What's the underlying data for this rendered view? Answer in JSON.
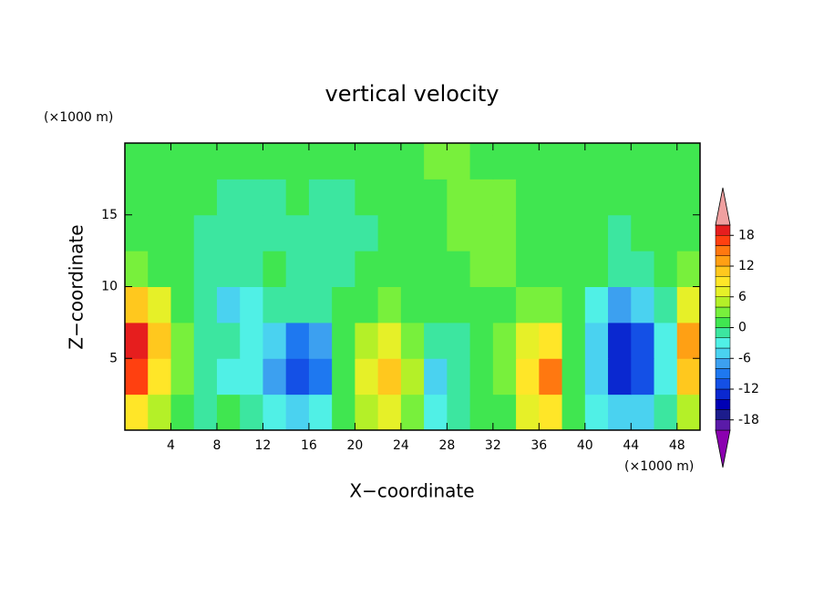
{
  "chart_data": {
    "type": "contour",
    "title": "vertical velocity",
    "xlabel": "X−coordinate",
    "ylabel": "Z−coordinate",
    "xunit": "(×1000 m)",
    "yunit": "(×1000 m)",
    "xlim": [
      0,
      50
    ],
    "ylim": [
      0,
      20
    ],
    "xticks": [
      4,
      8,
      12,
      16,
      20,
      24,
      28,
      32,
      36,
      40,
      44,
      48
    ],
    "yticks": [
      5,
      10,
      15
    ],
    "x": [
      1,
      3,
      5,
      7,
      9,
      11,
      13,
      15,
      17,
      19,
      21,
      23,
      25,
      27,
      29,
      31,
      33,
      35,
      37,
      39,
      41,
      43,
      45,
      47,
      49
    ],
    "y": [
      1.25,
      3.75,
      6.25,
      8.75,
      11.25,
      13.75,
      16.25,
      18.75
    ],
    "values": [
      [
        8,
        4,
        0,
        -1,
        0,
        -2,
        -3,
        -6,
        -4,
        0,
        4,
        6,
        2,
        -4,
        -1,
        0,
        0,
        6,
        8,
        0,
        -3,
        -6,
        -5,
        -1,
        4
      ],
      [
        16,
        8,
        2,
        -1,
        -3,
        -4,
        -8,
        -12,
        -10,
        0,
        6,
        10,
        4,
        -6,
        -2,
        0,
        2,
        8,
        14,
        0,
        -6,
        -14,
        -12,
        -3,
        10
      ],
      [
        18,
        10,
        2,
        -1,
        -2,
        -4,
        -6,
        -10,
        -8,
        0,
        4,
        6,
        2,
        -2,
        -1,
        0,
        2,
        6,
        8,
        0,
        -6,
        -14,
        -12,
        -4,
        12
      ],
      [
        10,
        6,
        1,
        -1,
        -6,
        -4,
        -2,
        -2,
        -1,
        0,
        1,
        2,
        1,
        0,
        0,
        1,
        1,
        2,
        2,
        0,
        -3,
        -8,
        -6,
        -2,
        6
      ],
      [
        2,
        0,
        0,
        -1,
        -2,
        -2,
        0,
        -1,
        -1,
        -2,
        0,
        1,
        0,
        0,
        1,
        2,
        2,
        1,
        1,
        0,
        0,
        -2,
        -1,
        0,
        2
      ],
      [
        0,
        0,
        0,
        -1,
        -1,
        -2,
        -2,
        -1,
        -2,
        -2,
        -1,
        0,
        0,
        1,
        2,
        3,
        2,
        1,
        0,
        0,
        0,
        -1,
        0,
        0,
        1
      ],
      [
        0,
        0,
        1,
        0,
        -1,
        -1,
        -1,
        0,
        -1,
        -1,
        0,
        0,
        0,
        1,
        3,
        3,
        2,
        1,
        0,
        0,
        0,
        0,
        0,
        0,
        0
      ],
      [
        1,
        1,
        1,
        1,
        0,
        1,
        0,
        0,
        0,
        0,
        1,
        1,
        1,
        2,
        2,
        1,
        1,
        1,
        1,
        1,
        1,
        1,
        1,
        1,
        1
      ]
    ],
    "colorbar": {
      "levels": [
        -20,
        -18,
        -16,
        -14,
        -12,
        -10,
        -8,
        -6,
        -4,
        -2,
        0,
        2,
        4,
        6,
        8,
        10,
        12,
        14,
        16,
        18,
        20
      ],
      "colors": [
        "#8b00b0",
        "#5a1aa8",
        "#1c1c8c",
        "#0000b4",
        "#0a28d0",
        "#1450e6",
        "#1e78f0",
        "#3ca0f0",
        "#4ad2f0",
        "#50f0e6",
        "#3ce6a0",
        "#40e650",
        "#78f03c",
        "#b4f028",
        "#e6f028",
        "#ffe628",
        "#ffc81e",
        "#ffa014",
        "#ff7810",
        "#ff4010",
        "#e61e1e",
        "#f0a0a0"
      ],
      "ticks": [
        18,
        12,
        6,
        0,
        -6,
        -12,
        -18
      ]
    }
  }
}
